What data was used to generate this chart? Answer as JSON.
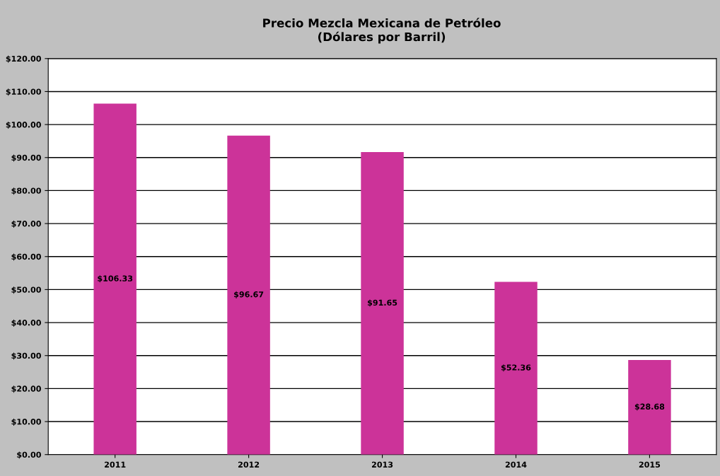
{
  "chart_data": {
    "type": "bar",
    "title": "Precio Mezcla Mexicana de Petróleo\n(Dólares por Barril)",
    "categories": [
      "2011",
      "2012",
      "2013",
      "2014",
      "2015"
    ],
    "values": [
      106.33,
      96.67,
      91.65,
      52.36,
      28.68
    ],
    "value_labels": [
      "$106.33",
      "$96.67",
      "$91.65",
      "$52.36",
      "$28.68"
    ],
    "color": "#cc3399",
    "ylim": [
      0,
      120
    ],
    "yticks": [
      {
        "value": 0,
        "label": "$0.00"
      },
      {
        "value": 10,
        "label": "$10.00"
      },
      {
        "value": 20,
        "label": "$20.00"
      },
      {
        "value": 30,
        "label": "$30.00"
      },
      {
        "value": 40,
        "label": "$40.00"
      },
      {
        "value": 50,
        "label": "$50.00"
      },
      {
        "value": 60,
        "label": "$60.00"
      },
      {
        "value": 70,
        "label": "$70.00"
      },
      {
        "value": 80,
        "label": "$80.00"
      },
      {
        "value": 90,
        "label": "$90.00"
      },
      {
        "value": 100,
        "label": "$100.00"
      },
      {
        "value": 110,
        "label": "$110.00"
      },
      {
        "value": 120,
        "label": "$120.00"
      }
    ],
    "grid": "y",
    "legend": false
  }
}
